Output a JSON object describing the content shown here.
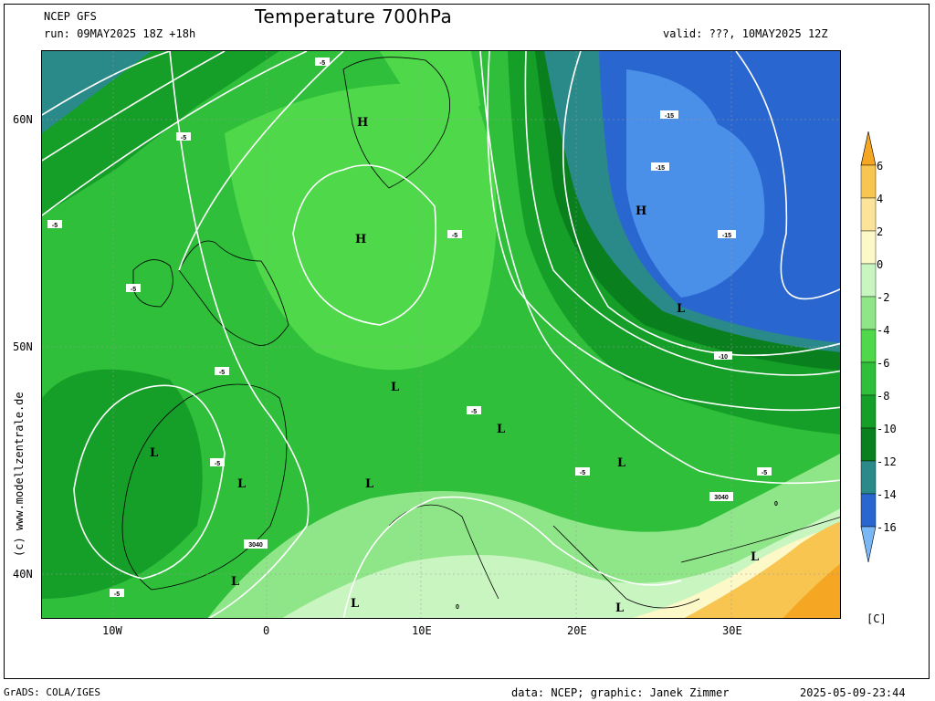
{
  "header": {
    "model": "NCEP GFS",
    "run": "run: 09MAY2025 18Z +18h",
    "title": "Temperature 700hPa",
    "valid": "valid: ???, 10MAY2025 12Z"
  },
  "axes": {
    "lat_labels": [
      "60N",
      "50N",
      "40N"
    ],
    "lon_labels": [
      "10W",
      "0",
      "10E",
      "20E",
      "30E"
    ]
  },
  "colorbar": {
    "labels": [
      "6",
      "4",
      "2",
      "0",
      "-2",
      "-4",
      "-6",
      "-8",
      "-10",
      "-12",
      "-14",
      "-16"
    ],
    "colors": [
      "#f5a623",
      "#f7c550",
      "#fbe49a",
      "#fdf8c8",
      "#c9f5c0",
      "#8fe688",
      "#4ed84a",
      "#2fbf3a",
      "#169f28",
      "#0a7f1e",
      "#2a8a8a",
      "#2a66d0",
      "#4a8fe8",
      "#7ab8f5"
    ],
    "unit": "[C]"
  },
  "contour_labels": [
    "-5",
    "-5",
    "-5",
    "-5",
    "-5",
    "-5",
    "-5",
    "-5",
    "-5",
    "-5",
    "-5",
    "-10",
    "-15",
    "-15",
    "-15",
    "3040",
    "3040",
    "0",
    "0"
  ],
  "pressure_centers": [
    "H",
    "H",
    "H",
    "L",
    "L",
    "L",
    "L",
    "L",
    "L",
    "L",
    "L",
    "L",
    "L",
    "L"
  ],
  "side_credit": "(c) www.modellzentrale.de",
  "footer": {
    "left": "GrADS: COLA/IGES",
    "center": "data: NCEP; graphic: Janek Zimmer",
    "right": "2025-05-09-23:44"
  },
  "map_colors": {
    "ocean_dark": "#2d9a2d",
    "land_green": "#3ec83e",
    "warm_south": "#a8e6a0",
    "warm_yellow": "#f4c04a",
    "cold_blue": "#2a6fd6",
    "cold_light": "#5b9cec",
    "teal": "#2a8c8c"
  }
}
